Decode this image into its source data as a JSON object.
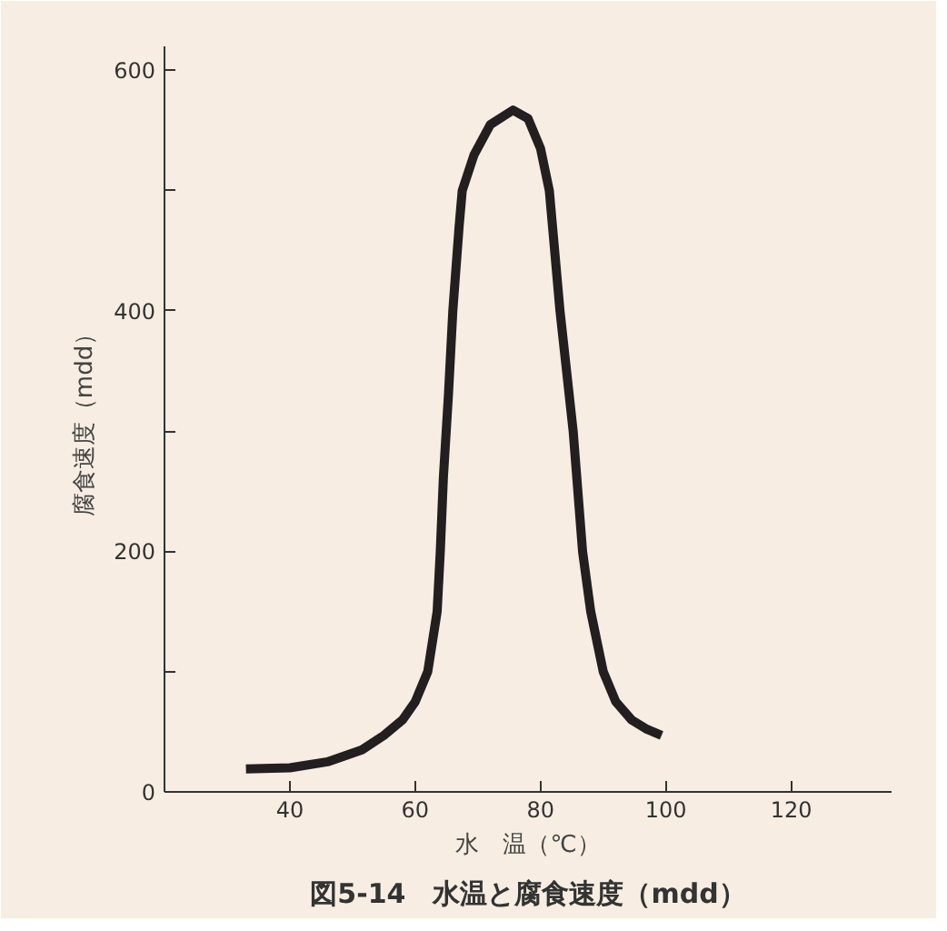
{
  "chart_data": {
    "type": "line",
    "title": "図5-14　水温と腐食速度（mdd）",
    "xlabel": "水　温（℃）",
    "ylabel": "腐食速度（mdd）",
    "x": [
      33,
      40,
      46,
      51.5,
      55,
      58,
      60,
      62,
      63.5,
      64,
      64.5,
      65.3,
      66,
      67,
      67.5,
      69.4,
      72,
      75.6,
      78,
      80,
      81.4,
      83.1,
      85.2,
      86.7,
      88,
      90,
      92,
      94.5,
      97,
      99.3
    ],
    "series": [
      {
        "color": "#231f20",
        "values": [
          19,
          20,
          25,
          35,
          47,
          60,
          75,
          100,
          150,
          200,
          262,
          330,
          400,
          470,
          500,
          530,
          555,
          567,
          560,
          535,
          500,
          400,
          300,
          200,
          150,
          100,
          75,
          60,
          52,
          47
        ]
      }
    ],
    "xlim": [
      20,
      136
    ],
    "ylim": [
      0,
      620
    ],
    "xticks": [
      40,
      60,
      80,
      100,
      120
    ],
    "yticks": [
      0,
      {
        "value": 100,
        "label": null
      },
      200,
      {
        "value": 300,
        "label": null
      },
      400,
      {
        "value": 500,
        "label": null
      },
      600
    ],
    "grid": false,
    "marker": "none",
    "line_style": "solid"
  }
}
